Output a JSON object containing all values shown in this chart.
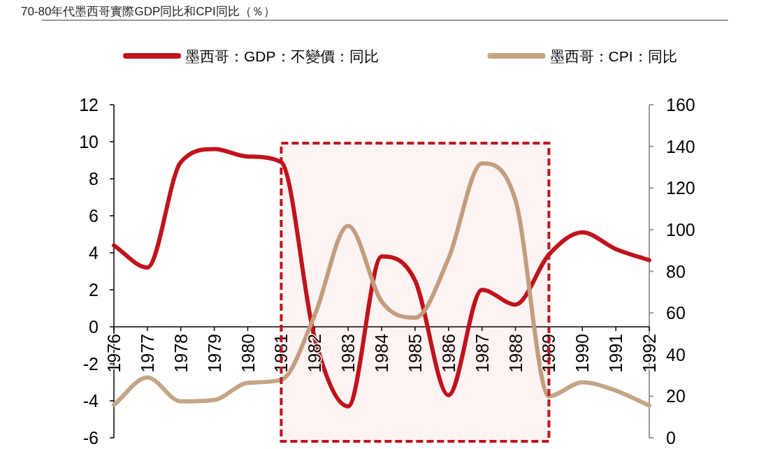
{
  "chart_data": {
    "type": "line",
    "title": "70-80年代墨西哥實際GDP同比和CPI同比（％）",
    "x": [
      1976,
      1977,
      1978,
      1979,
      1980,
      1981,
      1982,
      1983,
      1984,
      1985,
      1986,
      1987,
      1988,
      1989,
      1990,
      1991,
      1992
    ],
    "series": [
      {
        "name": "墨西哥：GDP：不變價：同比",
        "color": "#c0141c",
        "values": [
          4.4,
          3.2,
          8.9,
          9.6,
          9.2,
          8.9,
          -0.6,
          -4.3,
          3.8,
          2.5,
          -3.7,
          2.0,
          1.2,
          3.9,
          5.1,
          4.2,
          3.6
        ]
      },
      {
        "name": "墨西哥：CPI：同比",
        "color": "#c4a584",
        "axis": "y2",
        "values": [
          15.8,
          29,
          17.5,
          18.2,
          26.4,
          27.9,
          58.9,
          101.8,
          65.5,
          57.7,
          86.2,
          131.8,
          114.2,
          20,
          26.7,
          22.7,
          15.5
        ]
      }
    ],
    "xlim": [
      1976,
      1992
    ],
    "xticks": [
      1976,
      1977,
      1978,
      1979,
      1980,
      1981,
      1982,
      1983,
      1984,
      1985,
      1986,
      1987,
      1988,
      1989,
      1990,
      1991,
      1992
    ],
    "ylim": [
      -6,
      12
    ],
    "yticks": [
      -6,
      -4,
      -2,
      0,
      2,
      4,
      6,
      8,
      10,
      12
    ],
    "y2lim": [
      0,
      160
    ],
    "y2ticks": [
      0,
      20,
      40,
      60,
      80,
      100,
      120,
      140,
      160
    ],
    "bands": [
      {
        "axis": "x",
        "from": 1981,
        "to": 1989,
        "color": "#c0141c"
      }
    ],
    "legend": "top",
    "grid": false,
    "marker": "none",
    "line_style": "solid"
  }
}
